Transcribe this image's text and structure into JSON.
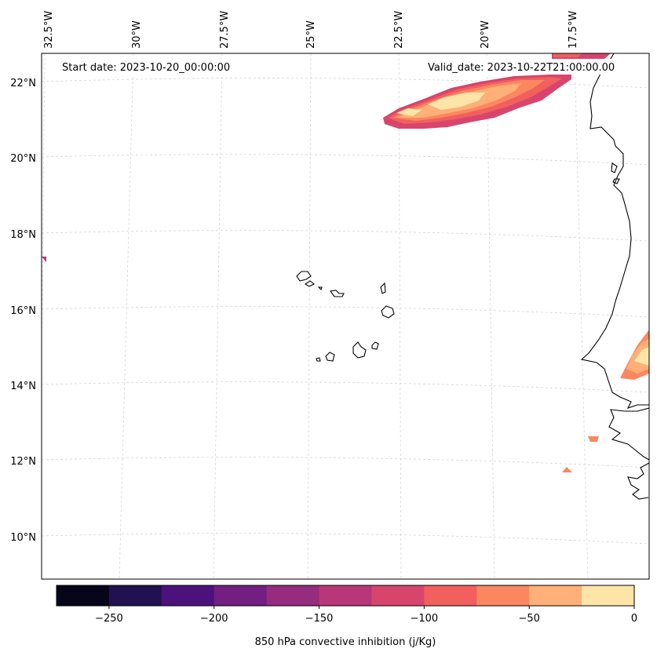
{
  "map": {
    "start_label": "Start date: 2023-10-20_00:00:00",
    "valid_label": "Valid_date: 2023-10-22T21:00:00.00",
    "lon_labels": [
      "32.5°W",
      "30°W",
      "27.5°W",
      "25°W",
      "22.5°W",
      "20°W",
      "17.5°W"
    ],
    "lat_labels": [
      "22°N",
      "20°N",
      "18°N",
      "16°N",
      "14°N",
      "12°N",
      "10°N"
    ]
  },
  "colorbar": {
    "label": "850 hPa convective inhibition (j/Kg)",
    "ticks": [
      "−250",
      "−200",
      "−150",
      "−100",
      "−50",
      "0"
    ],
    "tick_values": [
      -250,
      -200,
      -150,
      -100,
      -50,
      0
    ],
    "min": -275,
    "max": 0,
    "colors": [
      "#06051a",
      "#221150",
      "#4d117b",
      "#721f81",
      "#952c80",
      "#b73779",
      "#d8456c",
      "#f1605d",
      "#fb8761",
      "#feb078",
      "#fde5a7"
    ]
  }
}
